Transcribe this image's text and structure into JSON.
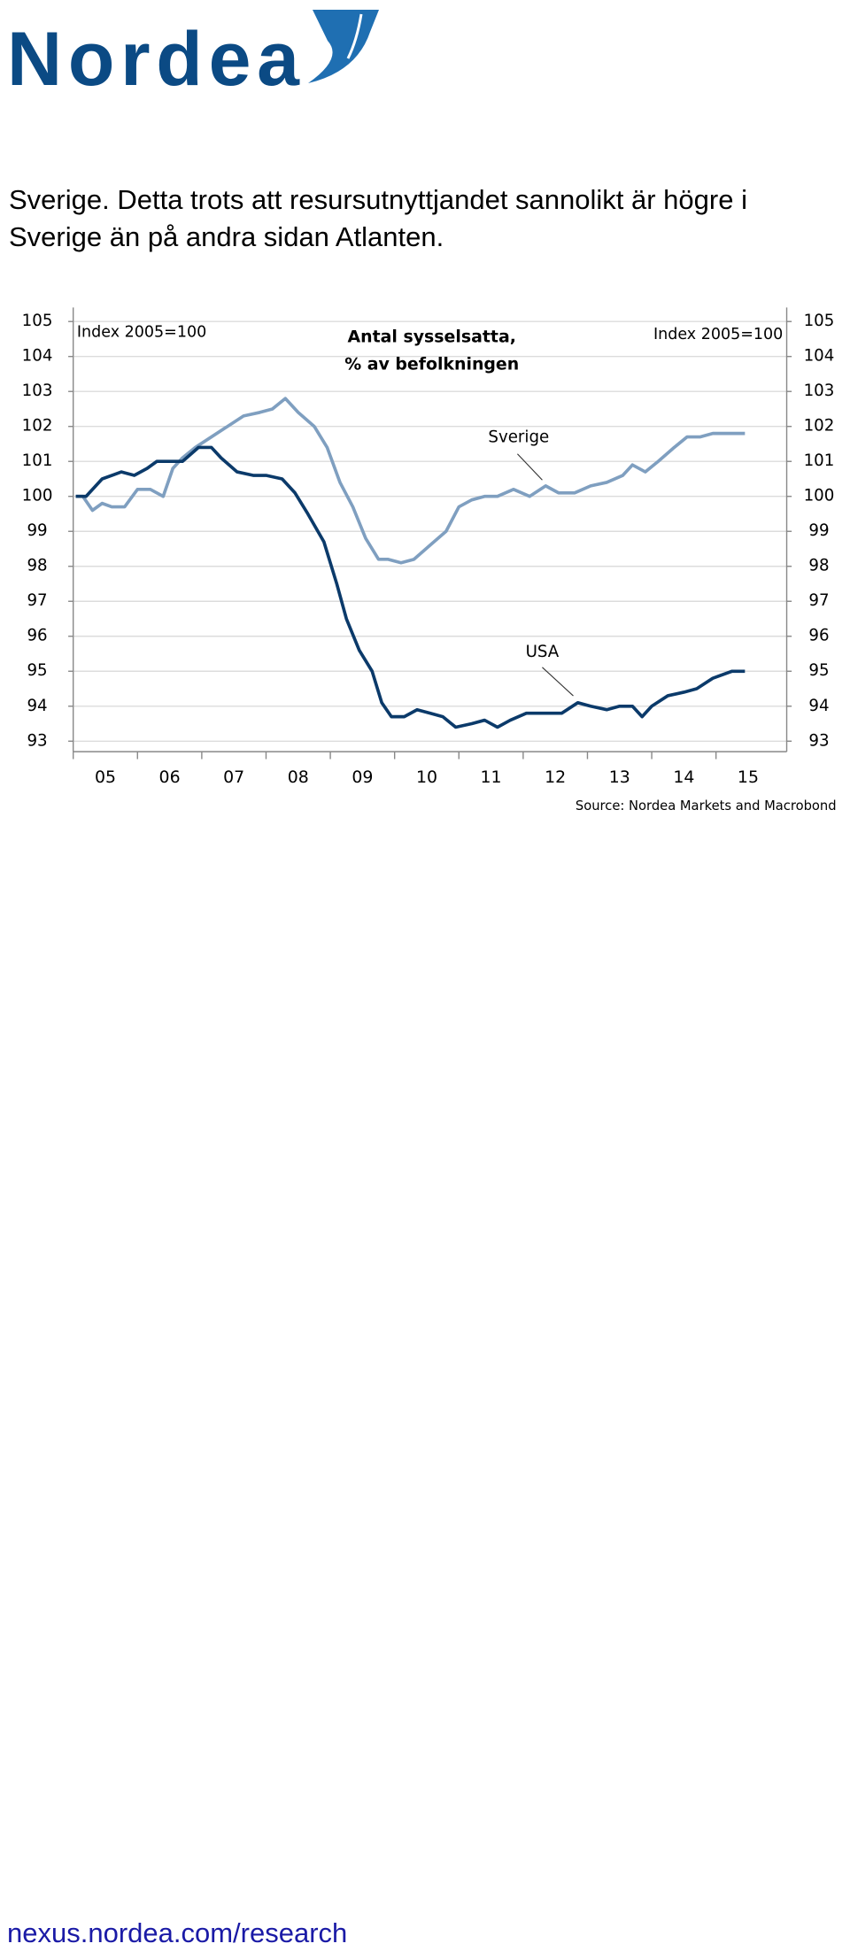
{
  "header": {
    "logo": "Nordea"
  },
  "body": {
    "lines": [
      "Sverige. Detta trots att resursutnyttjandet sannolikt är högre i",
      "Sverige än på andra sidan Atlanten."
    ]
  },
  "chart_data": {
    "type": "line",
    "title": "Antal sysselsatta,",
    "subtitle": "% av befolkningen",
    "ylabel": "Index 2005=100",
    "y2label": "Index 2005=100",
    "source": "Source: Nordea Markets and Macrobond",
    "annotations": [
      "Sverige",
      "USA"
    ],
    "xlim": [
      2005,
      2016.1
    ],
    "xticks": [
      {
        "value": 2005.5,
        "label": "05"
      },
      {
        "value": 2006.5,
        "label": "06"
      },
      {
        "value": 2007.5,
        "label": "07"
      },
      {
        "value": 2008.5,
        "label": "08"
      },
      {
        "value": 2009.5,
        "label": "09"
      },
      {
        "value": 2010.5,
        "label": "10"
      },
      {
        "value": 2011.5,
        "label": "11"
      },
      {
        "value": 2012.5,
        "label": "12"
      },
      {
        "value": 2013.5,
        "label": "13"
      },
      {
        "value": 2014.5,
        "label": "14"
      },
      {
        "value": 2015.5,
        "label": "15"
      }
    ],
    "ylim": [
      92.7,
      105.4
    ],
    "yticks": [
      93,
      94,
      95,
      96,
      97,
      98,
      99,
      100,
      101,
      102,
      103,
      104,
      105
    ],
    "y2lim": [
      92.7,
      105.4
    ],
    "y2ticks": [
      93,
      94,
      95,
      96,
      97,
      98,
      99,
      100,
      101,
      102,
      103,
      104,
      105
    ],
    "grid": true,
    "series": [
      {
        "name": "Sverige",
        "color": "#7f9fc0",
        "x": [
          2005.04,
          2005.15,
          2005.3,
          2005.45,
          2005.6,
          2005.8,
          2006.0,
          2006.2,
          2006.4,
          2006.55,
          2006.7,
          2006.9,
          2007.15,
          2007.4,
          2007.65,
          2007.9,
          2008.1,
          2008.3,
          2008.5,
          2008.75,
          2008.95,
          2009.15,
          2009.35,
          2009.55,
          2009.75,
          2009.9,
          2010.1,
          2010.3,
          2010.55,
          2010.8,
          2011.0,
          2011.2,
          2011.4,
          2011.6,
          2011.85,
          2012.1,
          2012.35,
          2012.55,
          2012.8,
          2013.05,
          2013.3,
          2013.55,
          2013.7,
          2013.9,
          2014.1,
          2014.35,
          2014.55,
          2014.75,
          2014.95,
          2015.2,
          2015.4,
          2015.45
        ],
        "values": [
          100.0,
          100.0,
          99.6,
          99.8,
          99.7,
          99.7,
          100.2,
          100.2,
          100.0,
          100.8,
          101.1,
          101.4,
          101.7,
          102.0,
          102.3,
          102.4,
          102.5,
          102.8,
          102.4,
          102.0,
          101.4,
          100.4,
          99.7,
          98.8,
          98.2,
          98.2,
          98.1,
          98.2,
          98.6,
          99.0,
          99.7,
          99.9,
          100.0,
          100.0,
          100.2,
          100.0,
          100.3,
          100.1,
          100.1,
          100.3,
          100.4,
          100.6,
          100.9,
          100.7,
          101.0,
          101.4,
          101.7,
          101.7,
          101.8,
          101.8,
          101.8,
          101.8
        ]
      },
      {
        "name": "USA",
        "color": "#0b3a6a",
        "x": [
          2005.04,
          2005.2,
          2005.45,
          2005.75,
          2005.95,
          2006.15,
          2006.3,
          2006.55,
          2006.7,
          2006.95,
          2007.15,
          2007.3,
          2007.55,
          2007.8,
          2008.0,
          2008.25,
          2008.45,
          2008.65,
          2008.9,
          2009.1,
          2009.25,
          2009.45,
          2009.65,
          2009.8,
          2009.95,
          2010.15,
          2010.35,
          2010.55,
          2010.75,
          2010.95,
          2011.2,
          2011.4,
          2011.6,
          2011.8,
          2012.05,
          2012.3,
          2012.6,
          2012.85,
          2013.05,
          2013.3,
          2013.5,
          2013.7,
          2013.85,
          2014.0,
          2014.25,
          2014.5,
          2014.7,
          2014.95,
          2015.25,
          2015.45
        ],
        "values": [
          100.0,
          100.0,
          100.5,
          100.7,
          100.6,
          100.8,
          101.0,
          101.0,
          101.0,
          101.4,
          101.4,
          101.1,
          100.7,
          100.6,
          100.6,
          100.5,
          100.1,
          99.5,
          98.7,
          97.5,
          96.5,
          95.6,
          95.0,
          94.1,
          93.7,
          93.7,
          93.9,
          93.8,
          93.7,
          93.4,
          93.5,
          93.6,
          93.4,
          93.6,
          93.8,
          93.8,
          93.8,
          94.1,
          94.0,
          93.9,
          94.0,
          94.0,
          93.7,
          94.0,
          94.3,
          94.4,
          94.5,
          94.8,
          95.0,
          95.0
        ]
      }
    ]
  },
  "footer": {
    "link": "nexus.nordea.com/research"
  }
}
